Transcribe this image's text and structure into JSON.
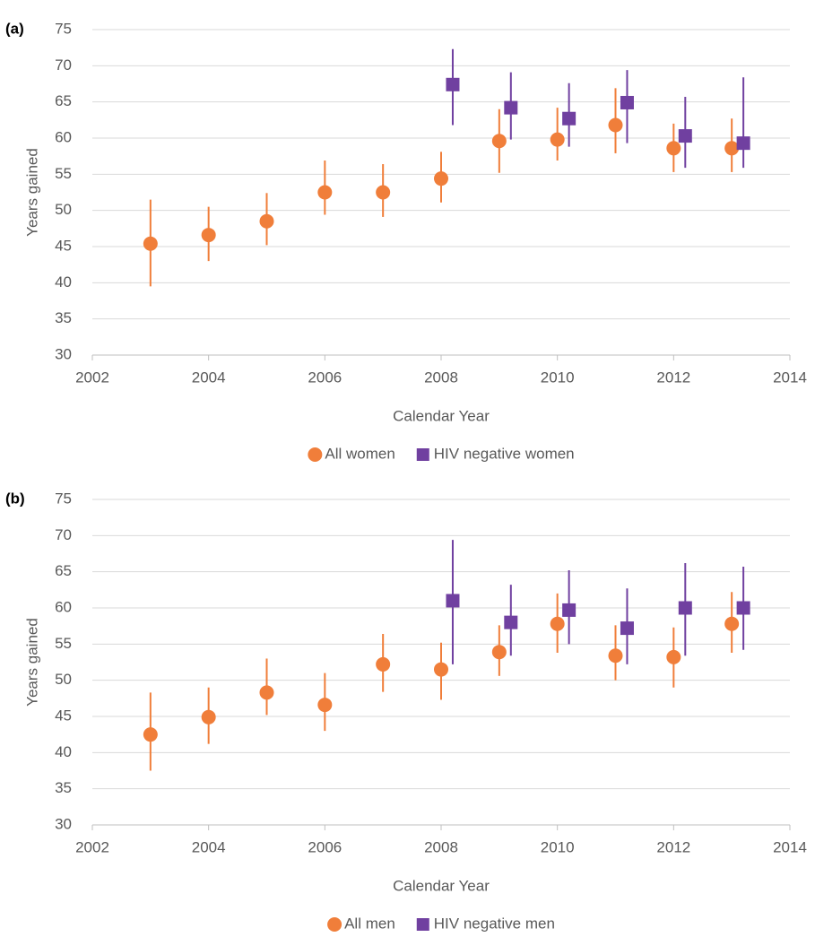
{
  "chart_data": [
    {
      "type": "scatter",
      "panel": "(a)",
      "x_label": "Calendar Year",
      "y_label": "Years gained",
      "xlim": [
        2002,
        2014
      ],
      "xticks": [
        2002,
        2004,
        2006,
        2008,
        2010,
        2012,
        2014
      ],
      "ylim": [
        30,
        75
      ],
      "yticks": [
        30,
        35,
        40,
        45,
        50,
        55,
        60,
        65,
        70,
        75
      ],
      "grid": true,
      "series": [
        {
          "name": "All women",
          "color": "#f07e3a",
          "marker": "circle",
          "x": [
            2003,
            2004,
            2005,
            2006,
            2007,
            2008,
            2009,
            2010,
            2011,
            2012,
            2013
          ],
          "values": [
            45.4,
            46.6,
            48.5,
            52.5,
            52.5,
            54.4,
            59.6,
            59.8,
            61.8,
            58.6,
            58.6
          ],
          "low": [
            39.5,
            43,
            45.2,
            49.4,
            49.1,
            51.1,
            55.2,
            56.9,
            57.9,
            55.3,
            55.3
          ],
          "high": [
            51.5,
            50.5,
            52.4,
            56.9,
            56.4,
            58.1,
            64,
            64.2,
            66.9,
            62,
            62.7
          ]
        },
        {
          "name": "HIV negative women",
          "color": "#7040a0",
          "marker": "square",
          "x": [
            2008.2,
            2009.2,
            2010.2,
            2011.2,
            2012.2,
            2013.2
          ],
          "values": [
            67.4,
            64.2,
            62.7,
            64.9,
            60.3,
            59.3
          ],
          "low": [
            61.8,
            59.8,
            58.8,
            59.3,
            55.9,
            55.9
          ],
          "high": [
            72.3,
            69.1,
            67.6,
            69.4,
            65.7,
            68.4
          ]
        }
      ]
    },
    {
      "type": "scatter",
      "panel": "(b)",
      "x_label": "Calendar Year",
      "y_label": "Years gained",
      "xlim": [
        2002,
        2014
      ],
      "xticks": [
        2002,
        2004,
        2006,
        2008,
        2010,
        2012,
        2014
      ],
      "ylim": [
        30,
        75
      ],
      "yticks": [
        30,
        35,
        40,
        45,
        50,
        55,
        60,
        65,
        70,
        75
      ],
      "grid": true,
      "series": [
        {
          "name": "All men",
          "color": "#f07e3a",
          "marker": "circle",
          "x": [
            2003,
            2004,
            2005,
            2006,
            2007,
            2008,
            2009,
            2010,
            2011,
            2012,
            2013
          ],
          "values": [
            42.5,
            44.9,
            48.3,
            46.6,
            52.2,
            51.5,
            53.9,
            57.8,
            53.4,
            53.2,
            57.8
          ],
          "low": [
            37.5,
            41.2,
            45.2,
            43,
            48.4,
            47.3,
            50.6,
            53.8,
            50,
            49,
            53.8
          ],
          "high": [
            48.3,
            49,
            53,
            51,
            56.4,
            55.2,
            57.6,
            62,
            57.6,
            57.3,
            62.2
          ]
        },
        {
          "name": "HIV negative men",
          "color": "#7040a0",
          "marker": "square",
          "x": [
            2008.2,
            2009.2,
            2010.2,
            2011.2,
            2012.2,
            2013.2
          ],
          "values": [
            61,
            58,
            59.7,
            57.2,
            60,
            60
          ],
          "low": [
            52.2,
            53.4,
            55,
            52.2,
            53.4,
            54.2
          ],
          "high": [
            69.4,
            63.2,
            65.2,
            62.7,
            66.2,
            65.7
          ]
        }
      ]
    }
  ]
}
